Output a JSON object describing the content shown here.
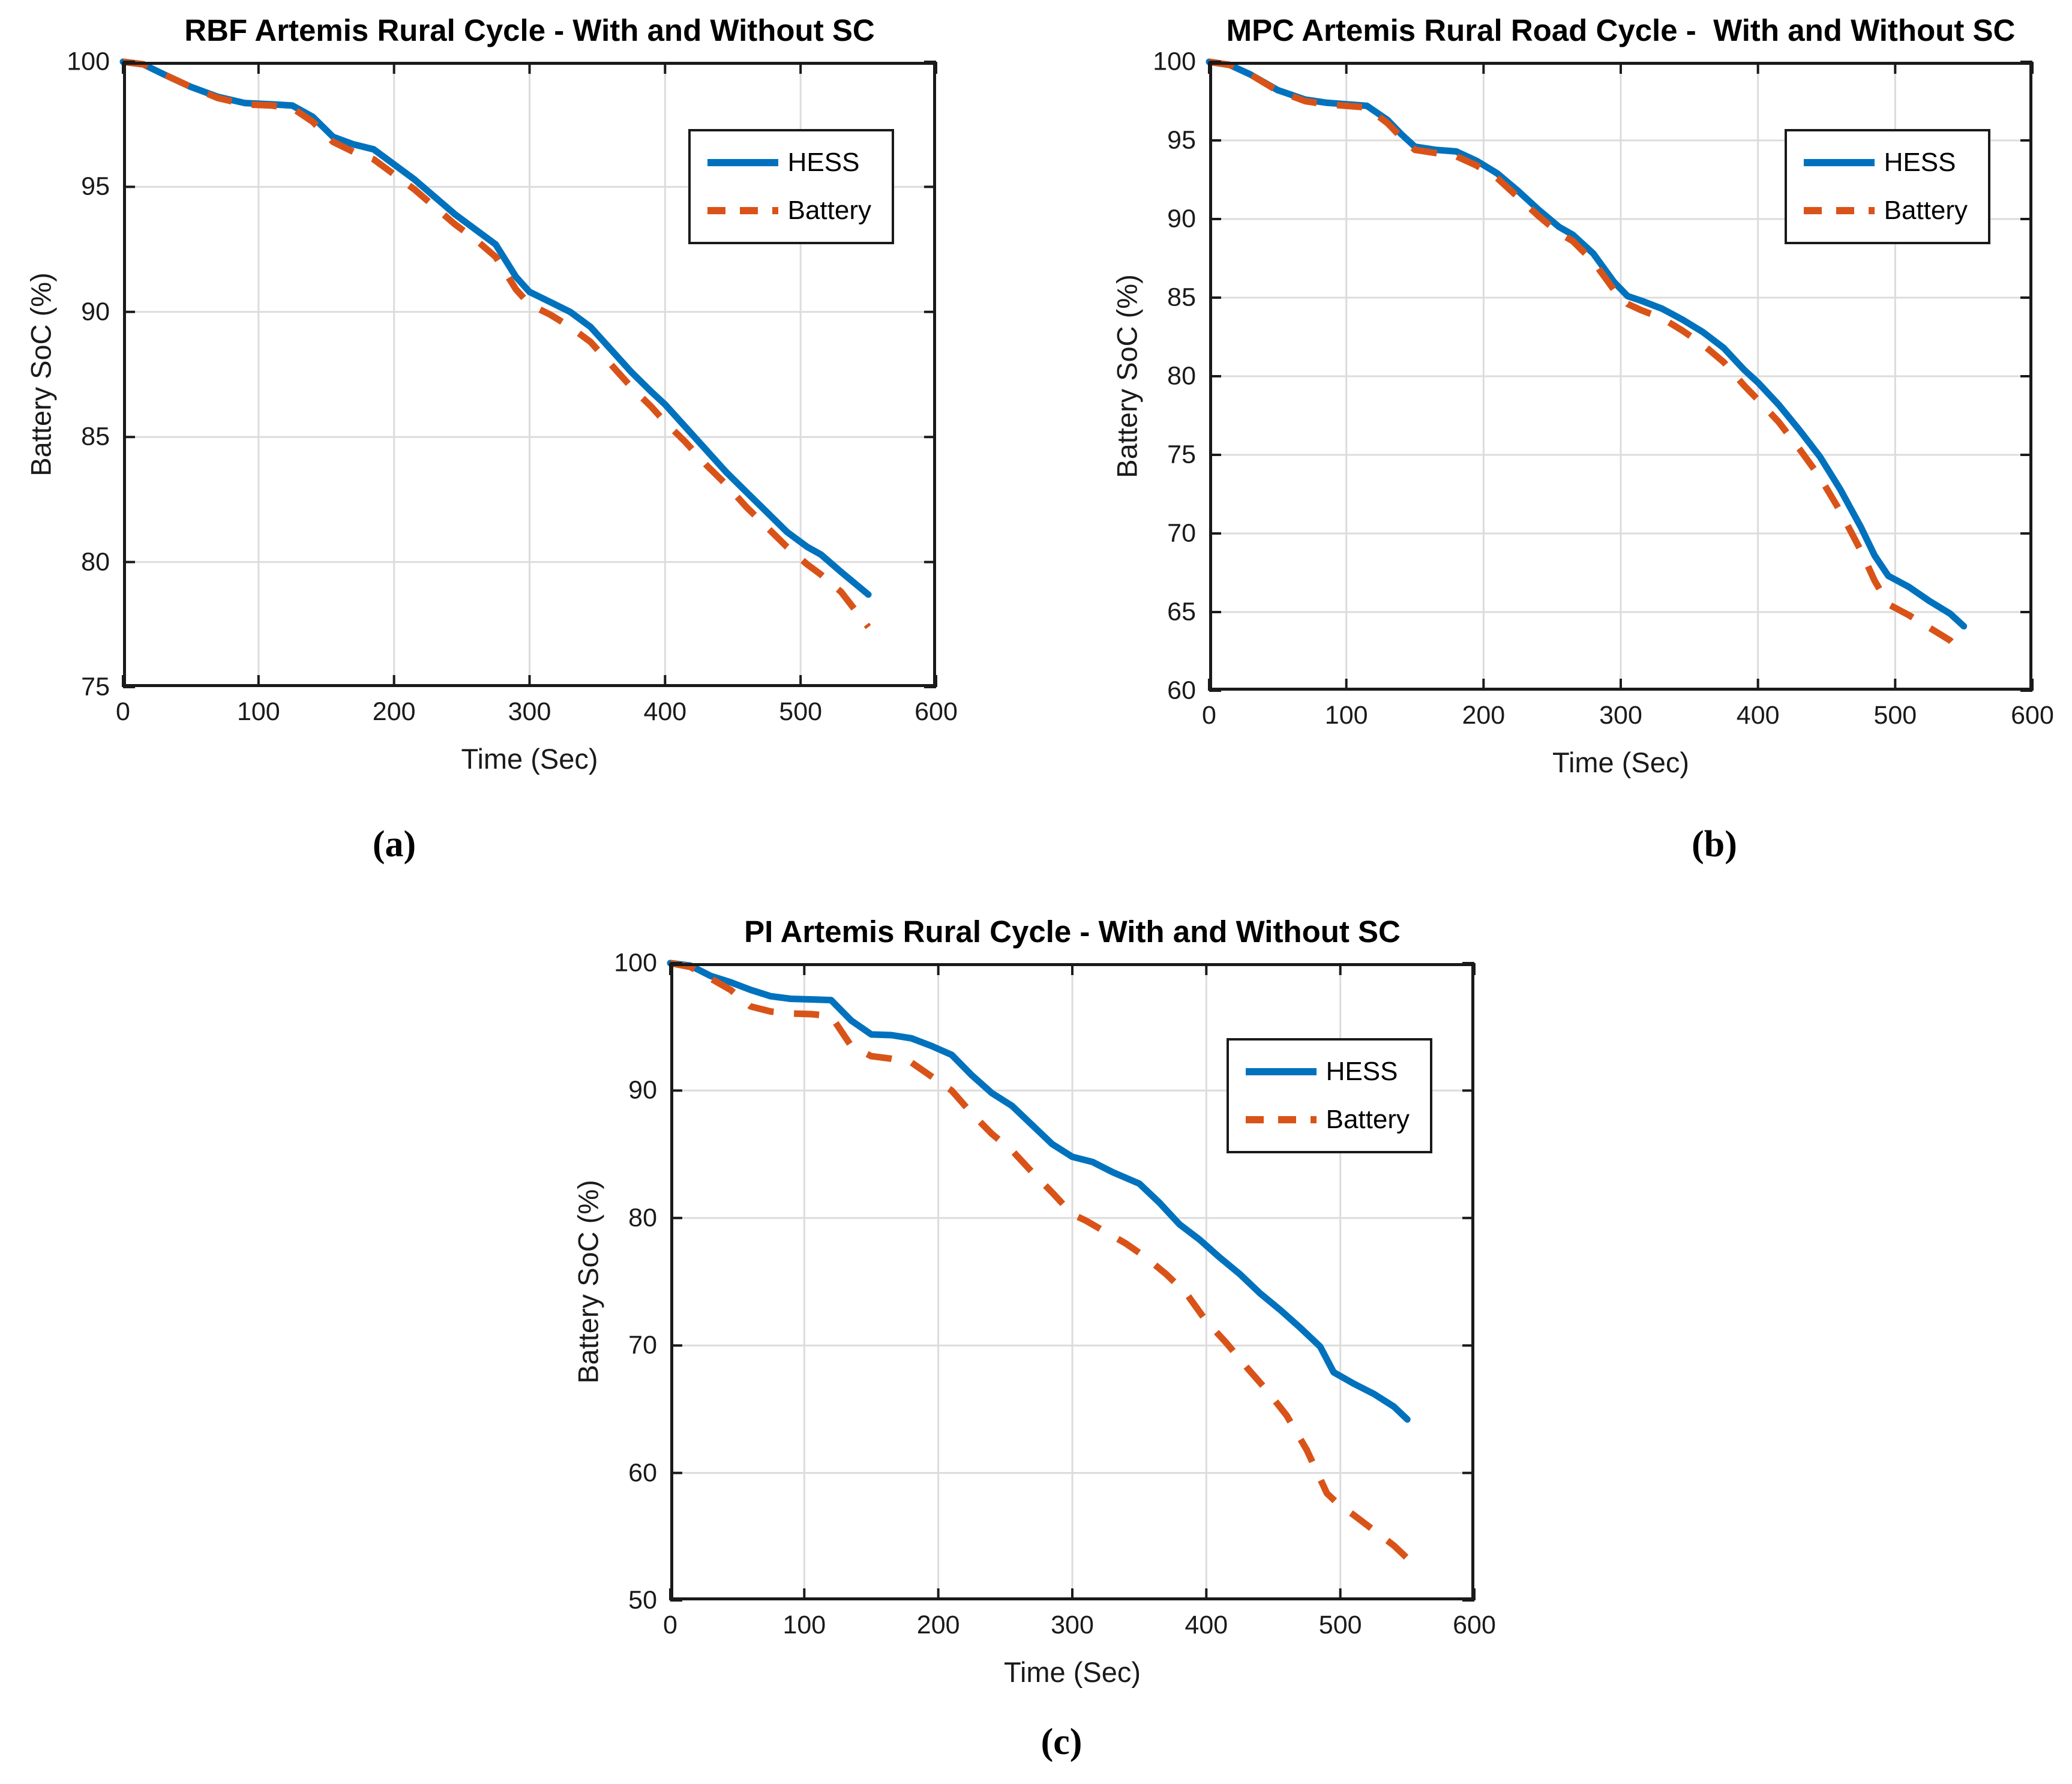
{
  "figure": {
    "background": "#ffffff",
    "grid_color": "#dcdcdc",
    "axis_color": "#1a1a1a"
  },
  "chart_data": [
    {
      "id": "a",
      "type": "line",
      "title": "RBF Artemis Rural Cycle - With and Without SC",
      "xlabel": "Time (Sec)",
      "ylabel": "Battery SoC (%)",
      "caption": "(a)",
      "xlim": [
        0,
        600
      ],
      "ylim": [
        75,
        100
      ],
      "xticks": [
        0,
        100,
        200,
        300,
        400,
        500,
        600
      ],
      "yticks": [
        75,
        80,
        85,
        90,
        95,
        100
      ],
      "grid": true,
      "legend_position": "top-right",
      "series": [
        {
          "name": "HESS",
          "style": "solid",
          "color": "#0072BD",
          "x": [
            0,
            15,
            30,
            50,
            70,
            90,
            110,
            125,
            140,
            155,
            170,
            185,
            200,
            215,
            230,
            245,
            260,
            275,
            290,
            300,
            315,
            330,
            345,
            360,
            375,
            390,
            400,
            415,
            430,
            445,
            460,
            475,
            490,
            505,
            515,
            530,
            550
          ],
          "y": [
            100,
            99.9,
            99.5,
            99.0,
            98.6,
            98.35,
            98.3,
            98.25,
            97.8,
            97.0,
            96.7,
            96.5,
            95.9,
            95.3,
            94.6,
            93.9,
            93.3,
            92.7,
            91.4,
            90.8,
            90.4,
            90.0,
            89.4,
            88.5,
            87.6,
            86.8,
            86.3,
            85.4,
            84.5,
            83.6,
            82.8,
            82.0,
            81.2,
            80.6,
            80.3,
            79.6,
            78.7
          ]
        },
        {
          "name": "Battery",
          "style": "dashed",
          "color": "#D95319",
          "x": [
            0,
            15,
            30,
            50,
            70,
            90,
            110,
            125,
            140,
            155,
            170,
            185,
            200,
            215,
            230,
            245,
            260,
            275,
            290,
            300,
            315,
            330,
            345,
            360,
            375,
            390,
            400,
            415,
            430,
            445,
            460,
            475,
            490,
            505,
            515,
            530,
            550
          ],
          "y": [
            100,
            99.9,
            99.5,
            99.0,
            98.55,
            98.3,
            98.25,
            98.15,
            97.6,
            96.8,
            96.4,
            96.1,
            95.5,
            94.9,
            94.2,
            93.5,
            92.9,
            92.2,
            90.9,
            90.3,
            89.9,
            89.4,
            88.8,
            87.9,
            87.0,
            86.2,
            85.6,
            84.8,
            83.9,
            83.1,
            82.2,
            81.4,
            80.6,
            79.9,
            79.5,
            78.8,
            77.4
          ]
        }
      ]
    },
    {
      "id": "b",
      "type": "line",
      "title": "MPC Artemis Rural Road Cycle -  With and Without SC",
      "xlabel": "Time (Sec)",
      "ylabel": "Battery SoC (%)",
      "caption": "(b)",
      "xlim": [
        0,
        600
      ],
      "ylim": [
        60,
        100
      ],
      "xticks": [
        0,
        100,
        200,
        300,
        400,
        500,
        600
      ],
      "yticks": [
        60,
        65,
        70,
        75,
        80,
        85,
        90,
        95,
        100
      ],
      "grid": true,
      "legend_position": "top-right",
      "series": [
        {
          "name": "HESS",
          "style": "solid",
          "color": "#0072BD",
          "x": [
            0,
            15,
            30,
            50,
            70,
            85,
            100,
            115,
            130,
            140,
            150,
            165,
            180,
            195,
            210,
            225,
            240,
            255,
            265,
            280,
            295,
            305,
            315,
            330,
            345,
            360,
            375,
            390,
            400,
            415,
            430,
            445,
            460,
            475,
            485,
            495,
            510,
            525,
            540,
            550
          ],
          "y": [
            100,
            99.8,
            99.2,
            98.2,
            97.6,
            97.4,
            97.3,
            97.2,
            96.3,
            95.4,
            94.6,
            94.4,
            94.3,
            93.7,
            92.9,
            91.8,
            90.6,
            89.5,
            89.0,
            87.8,
            86.0,
            85.1,
            84.8,
            84.3,
            83.6,
            82.8,
            81.8,
            80.4,
            79.6,
            78.2,
            76.6,
            74.9,
            72.8,
            70.4,
            68.6,
            67.3,
            66.6,
            65.7,
            64.9,
            64.1
          ]
        },
        {
          "name": "Battery",
          "style": "dashed",
          "color": "#D95319",
          "x": [
            0,
            15,
            30,
            50,
            70,
            85,
            100,
            115,
            130,
            140,
            150,
            165,
            180,
            195,
            210,
            225,
            240,
            255,
            265,
            280,
            295,
            305,
            315,
            330,
            345,
            360,
            375,
            390,
            400,
            415,
            430,
            445,
            460,
            475,
            485,
            495,
            510,
            525,
            540,
            550
          ],
          "y": [
            100,
            99.8,
            99.2,
            98.15,
            97.5,
            97.3,
            97.2,
            97.1,
            96.1,
            95.2,
            94.4,
            94.2,
            94.0,
            93.4,
            92.6,
            91.4,
            90.2,
            89.1,
            88.6,
            87.3,
            85.5,
            84.6,
            84.2,
            83.7,
            82.9,
            82.0,
            80.9,
            79.4,
            78.5,
            77.1,
            75.4,
            73.6,
            71.4,
            68.9,
            67.0,
            65.5,
            64.8,
            64.0,
            63.2,
            62.3
          ]
        }
      ]
    },
    {
      "id": "c",
      "type": "line",
      "title": "PI Artemis Rural Cycle - With and Without SC",
      "xlabel": "Time (Sec)",
      "ylabel": "Battery SoC (%)",
      "caption": "(c)",
      "xlim": [
        0,
        600
      ],
      "ylim": [
        50,
        100
      ],
      "xticks": [
        0,
        100,
        200,
        300,
        400,
        500,
        600
      ],
      "yticks": [
        50,
        60,
        70,
        80,
        90,
        100
      ],
      "grid": true,
      "legend_position": "top-right",
      "series": [
        {
          "name": "HESS",
          "style": "solid",
          "color": "#0072BD",
          "x": [
            0,
            15,
            30,
            45,
            60,
            75,
            90,
            105,
            120,
            135,
            150,
            165,
            180,
            195,
            210,
            225,
            240,
            255,
            270,
            285,
            300,
            315,
            330,
            350,
            365,
            380,
            395,
            410,
            425,
            440,
            455,
            470,
            485,
            495,
            510,
            525,
            540,
            550
          ],
          "y": [
            100,
            99.8,
            99.0,
            98.5,
            97.9,
            97.4,
            97.2,
            97.15,
            97.1,
            95.5,
            94.4,
            94.35,
            94.1,
            93.5,
            92.8,
            91.2,
            89.8,
            88.8,
            87.3,
            85.8,
            84.8,
            84.4,
            83.6,
            82.7,
            81.2,
            79.5,
            78.3,
            76.9,
            75.6,
            74.1,
            72.8,
            71.4,
            69.9,
            67.9,
            67.0,
            66.2,
            65.2,
            64.2
          ]
        },
        {
          "name": "Battery",
          "style": "dashed",
          "color": "#D95319",
          "x": [
            0,
            15,
            30,
            45,
            60,
            75,
            90,
            105,
            120,
            135,
            150,
            165,
            180,
            195,
            210,
            225,
            240,
            255,
            270,
            285,
            300,
            310,
            325,
            340,
            355,
            370,
            385,
            400,
            415,
            430,
            445,
            460,
            475,
            490,
            500,
            510,
            525,
            540,
            550
          ],
          "y": [
            100,
            99.7,
            98.8,
            97.9,
            96.6,
            96.2,
            96.05,
            96.0,
            95.85,
            93.5,
            92.7,
            92.5,
            92.2,
            91.1,
            90.0,
            88.2,
            86.6,
            85.3,
            83.6,
            82.0,
            80.3,
            79.8,
            78.9,
            78.0,
            76.9,
            75.6,
            74.1,
            71.9,
            70.2,
            68.3,
            66.5,
            64.5,
            61.8,
            58.4,
            57.4,
            56.7,
            55.5,
            54.3,
            53.3
          ]
        }
      ]
    }
  ]
}
